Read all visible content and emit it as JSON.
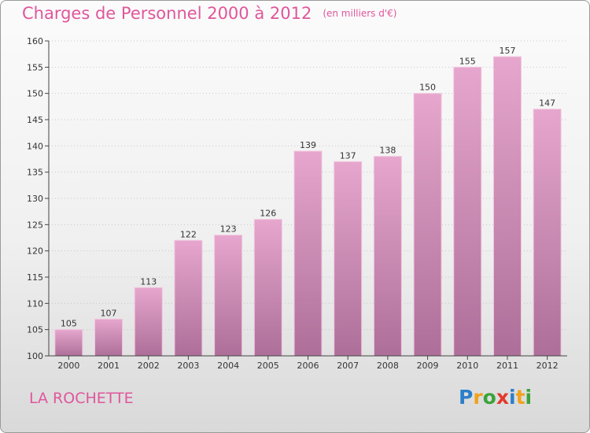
{
  "chart_data": {
    "type": "bar",
    "title": "Charges de Personnel 2000 à 2012",
    "subtitle": "(en milliers d'€)",
    "categories": [
      "2000",
      "2001",
      "2002",
      "2003",
      "2004",
      "2005",
      "2006",
      "2007",
      "2008",
      "2009",
      "2010",
      "2011",
      "2012"
    ],
    "values": [
      105,
      107,
      113,
      122,
      123,
      126,
      139,
      137,
      138,
      150,
      155,
      157,
      147
    ],
    "ylim": [
      100,
      160
    ],
    "yticks": [
      100,
      105,
      110,
      115,
      120,
      125,
      130,
      135,
      140,
      145,
      150,
      155,
      160
    ],
    "xlabel": "",
    "ylabel": "",
    "grid": true,
    "bar_color": "#d888b6",
    "title_color": "#e0569b"
  },
  "commune": "LA ROCHETTE",
  "logo": {
    "letters": [
      "P",
      "r",
      "o",
      "x",
      "i",
      "t",
      "i"
    ],
    "colors": [
      "#2a7fc9",
      "#f0a21c",
      "#3aa33a",
      "#e23a2e",
      "#2a7fc9",
      "#f0a21c",
      "#3aa33a"
    ]
  }
}
